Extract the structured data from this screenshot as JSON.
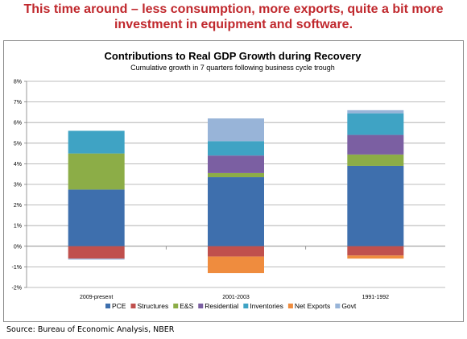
{
  "headline": "This time around – less consumption, more exports, quite a bit more investment in equipment and software.",
  "source": "Source: Bureau of Economic Analysis, NBER",
  "chart_data": {
    "type": "bar",
    "stacked": true,
    "title": "Contributions to Real GDP Growth during Recovery",
    "subtitle": "Cumulative growth in 7 quarters following business cycle trough",
    "categories": [
      "2009-present",
      "2001-2003",
      "1991-1992"
    ],
    "ylim": [
      -2,
      8
    ],
    "y_ticks": [
      "-2%",
      "-1%",
      "0%",
      "1%",
      "2%",
      "3%",
      "4%",
      "5%",
      "6%",
      "7%",
      "8%"
    ],
    "y_tick_values": [
      -2,
      -1,
      0,
      1,
      2,
      3,
      4,
      5,
      6,
      7,
      8
    ],
    "grid": true,
    "legend_position": "bottom",
    "series": [
      {
        "name": "PCE",
        "color": "#3e6fad",
        "values": [
          2.75,
          3.35,
          3.9
        ]
      },
      {
        "name": "Structures",
        "color": "#c0504d",
        "values": [
          -0.6,
          -0.5,
          -0.45
        ]
      },
      {
        "name": "E&S",
        "color": "#8cad47",
        "values": [
          1.75,
          0.2,
          0.55
        ]
      },
      {
        "name": "Residential",
        "color": "#7b5fa2",
        "values": [
          0.0,
          0.85,
          0.95
        ]
      },
      {
        "name": "Inventories",
        "color": "#3fa3c4",
        "values": [
          1.1,
          0.7,
          1.05
        ]
      },
      {
        "name": "Net Exports",
        "color": "#ef8c3e",
        "values": [
          0.0,
          -0.8,
          -0.15
        ]
      },
      {
        "name": "Govt",
        "color": "#98b4d8",
        "values": [
          -0.05,
          1.1,
          0.15
        ]
      }
    ]
  }
}
